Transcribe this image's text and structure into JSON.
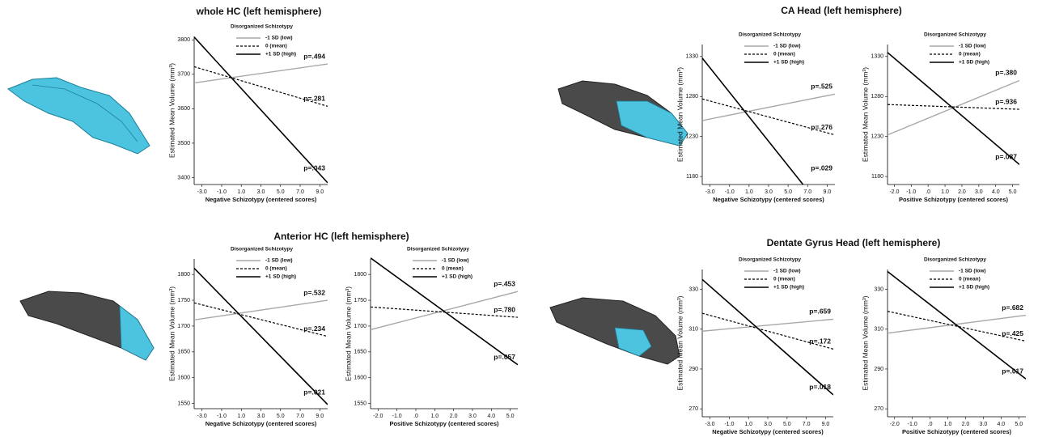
{
  "chart_data": [
    {
      "type": "line",
      "title": "whole HC (left hemisphere)",
      "xlabel": "Negative Schizotypy (centered scores)",
      "ylabel": "Estimated Mean Volume (mm³)",
      "legend_title": "Disorganized  Schizotypy",
      "x": [
        -3.8,
        9.8
      ],
      "xlim": [
        -3.8,
        9.8
      ],
      "ylim": [
        3380,
        3810
      ],
      "xticks": [
        {
          "value": -3,
          "label": "-3.0"
        },
        {
          "value": -1,
          "label": "-1.0"
        },
        {
          "value": 1,
          "label": "1.0"
        },
        {
          "value": 3,
          "label": "3.0"
        },
        {
          "value": 5,
          "label": "5.0"
        },
        {
          "value": 7,
          "label": "7.0"
        },
        {
          "value": 9,
          "label": "9.0"
        }
      ],
      "yticks": [
        3400,
        3500,
        3600,
        3700,
        3800
      ],
      "series": [
        {
          "name": "-1 SD (low)",
          "color": "#a8a8a8",
          "dash": false,
          "values": [
            3675,
            3730
          ],
          "annotation": "p=.494"
        },
        {
          "name": " 0 (mean)",
          "color": "#000000",
          "dash": true,
          "values": [
            3722,
            3607
          ],
          "annotation": "p=.281"
        },
        {
          "name": "+1 SD (high)",
          "color": "#000000",
          "dash": false,
          "values": [
            3808,
            3385
          ],
          "annotation": "p=.043"
        }
      ]
    },
    {
      "type": "line",
      "title": "CA Head (left hemisphere)",
      "xlabel": "Negative Schizotypy (centered scores)",
      "ylabel": "Estimated Mean Volume (mm³)",
      "legend_title": "Disorganized  Schizotypy",
      "x": [
        -3.8,
        9.8
      ],
      "xlim": [
        -3.8,
        9.8
      ],
      "ylim": [
        1170,
        1345
      ],
      "xticks": [
        {
          "value": -3,
          "label": "-3.0"
        },
        {
          "value": -1,
          "label": "-1.0"
        },
        {
          "value": 1,
          "label": "1.0"
        },
        {
          "value": 3,
          "label": "3.0"
        },
        {
          "value": 5,
          "label": "5.0"
        },
        {
          "value": 7,
          "label": "7.0"
        },
        {
          "value": 9,
          "label": "9.0"
        }
      ],
      "yticks": [
        1180,
        1230,
        1280,
        1330
      ],
      "series": [
        {
          "name": "-1 SD (low)",
          "color": "#a8a8a8",
          "dash": false,
          "values": [
            1250,
            1283
          ],
          "annotation": "p=.525"
        },
        {
          "name": " 0 (mean)",
          "color": "#000000",
          "dash": true,
          "values": [
            1277,
            1232
          ],
          "annotation": "p=.276"
        },
        {
          "name": "+1 SD (high)",
          "color": "#000000",
          "dash": false,
          "values": [
            1328,
            1120
          ],
          "annotation": "p=.029"
        }
      ]
    },
    {
      "type": "line",
      "xlabel": "Positive Schizotypy (centered scores)",
      "ylabel": "Estimated Mean Volume (mm³)",
      "legend_title": "Disorganized  Schizotypy",
      "x": [
        -2.4,
        5.4
      ],
      "xlim": [
        -2.4,
        5.4
      ],
      "ylim": [
        1170,
        1345
      ],
      "xticks": [
        {
          "value": -2,
          "label": "-2.0"
        },
        {
          "value": -1,
          "label": "-1.0"
        },
        {
          "value": 0,
          "label": ".0"
        },
        {
          "value": 1,
          "label": "1.0"
        },
        {
          "value": 2,
          "label": "2.0"
        },
        {
          "value": 3,
          "label": "3.0"
        },
        {
          "value": 4,
          "label": "4.0"
        },
        {
          "value": 5,
          "label": "5.0"
        }
      ],
      "yticks": [
        1180,
        1230,
        1280,
        1330
      ],
      "series": [
        {
          "name": "-1 SD (low)",
          "color": "#a8a8a8",
          "dash": false,
          "values": [
            1232,
            1300
          ],
          "annotation": "p=.380"
        },
        {
          "name": " 0 (mean)",
          "color": "#000000",
          "dash": true,
          "values": [
            1270,
            1264
          ],
          "annotation": "p=.936"
        },
        {
          "name": "+1 SD (high)",
          "color": "#000000",
          "dash": false,
          "values": [
            1335,
            1195
          ],
          "annotation": "p=.087"
        }
      ]
    },
    {
      "type": "line",
      "title": "Anterior HC (left hemisphere)",
      "xlabel": "Negative Schizotypy (centered scores)",
      "ylabel": "Estimated Mean Volume (mm³)",
      "legend_title": "Disorganized  Schizotypy",
      "x": [
        -3.8,
        9.8
      ],
      "xlim": [
        -3.8,
        9.8
      ],
      "ylim": [
        1540,
        1830
      ],
      "xticks": [
        {
          "value": -3,
          "label": "-3.0"
        },
        {
          "value": -1,
          "label": "-1.0"
        },
        {
          "value": 1,
          "label": "1.0"
        },
        {
          "value": 3,
          "label": "3.0"
        },
        {
          "value": 5,
          "label": "5.0"
        },
        {
          "value": 7,
          "label": "7.0"
        },
        {
          "value": 9,
          "label": "9.0"
        }
      ],
      "yticks": [
        1550,
        1600,
        1650,
        1700,
        1750,
        1800
      ],
      "series": [
        {
          "name": "-1 SD (low)",
          "color": "#a8a8a8",
          "dash": false,
          "values": [
            1712,
            1750
          ],
          "annotation": "p=.532"
        },
        {
          "name": " 0 (mean)",
          "color": "#000000",
          "dash": true,
          "values": [
            1745,
            1680
          ],
          "annotation": "p=.234"
        },
        {
          "name": "+1 SD (high)",
          "color": "#000000",
          "dash": false,
          "values": [
            1812,
            1548
          ],
          "annotation": "p=.021"
        }
      ]
    },
    {
      "type": "line",
      "xlabel": "Positive Schizotypy (centered scores)",
      "ylabel": "Estimated Mean Volume (mm³)",
      "legend_title": "Disorganized  Schizotypy",
      "x": [
        -2.4,
        5.4
      ],
      "xlim": [
        -2.4,
        5.4
      ],
      "ylim": [
        1540,
        1830
      ],
      "xticks": [
        {
          "value": -2,
          "label": "-2.0"
        },
        {
          "value": -1,
          "label": "-1.0"
        },
        {
          "value": 0,
          "label": ".0"
        },
        {
          "value": 1,
          "label": "1.0"
        },
        {
          "value": 2,
          "label": "2.0"
        },
        {
          "value": 3,
          "label": "3.0"
        },
        {
          "value": 4,
          "label": "4.0"
        },
        {
          "value": 5,
          "label": "5.0"
        }
      ],
      "yticks": [
        1550,
        1600,
        1650,
        1700,
        1750,
        1800
      ],
      "series": [
        {
          "name": "-1 SD (low)",
          "color": "#a8a8a8",
          "dash": false,
          "values": [
            1693,
            1767
          ],
          "annotation": "p=.453"
        },
        {
          "name": " 0 (mean)",
          "color": "#000000",
          "dash": true,
          "values": [
            1737,
            1717
          ],
          "annotation": "p=.780"
        },
        {
          "name": "+1 SD (high)",
          "color": "#000000",
          "dash": false,
          "values": [
            1832,
            1625
          ],
          "annotation": "p=.057"
        }
      ]
    },
    {
      "type": "line",
      "title": "Dentate Gyrus Head (left hemisphere)",
      "xlabel": "Negative Schizotypy (centered scores)",
      "ylabel": "Estimated Mean Volume (mm³)",
      "legend_title": "Disorganized  Schizotypy",
      "x": [
        -3.8,
        9.8
      ],
      "xlim": [
        -3.8,
        9.8
      ],
      "ylim": [
        266,
        340
      ],
      "xticks": [
        {
          "value": -3,
          "label": "-3.0"
        },
        {
          "value": -1,
          "label": "-1.0"
        },
        {
          "value": 1,
          "label": "1.0"
        },
        {
          "value": 3,
          "label": "3.0"
        },
        {
          "value": 5,
          "label": "5.0"
        },
        {
          "value": 7,
          "label": "7.0"
        },
        {
          "value": 9,
          "label": "9.0"
        }
      ],
      "yticks": [
        270,
        290,
        310,
        330
      ],
      "series": [
        {
          "name": "-1 SD (low)",
          "color": "#a8a8a8",
          "dash": false,
          "values": [
            309,
            315
          ],
          "annotation": "p=.659"
        },
        {
          "name": " 0 (mean)",
          "color": "#000000",
          "dash": true,
          "values": [
            318,
            300
          ],
          "annotation": "p=.172"
        },
        {
          "name": "+1 SD (high)",
          "color": "#000000",
          "dash": false,
          "values": [
            335,
            277
          ],
          "annotation": "p=.018"
        }
      ]
    },
    {
      "type": "line",
      "xlabel": "Positive Schizotypy (centered scores)",
      "ylabel": "Estimated Mean Volume (mm³)",
      "legend_title": "Disorganized  Schizotypy",
      "x": [
        -2.4,
        5.4
      ],
      "xlim": [
        -2.4,
        5.4
      ],
      "ylim": [
        266,
        340
      ],
      "xticks": [
        {
          "value": -2,
          "label": "-2.0"
        },
        {
          "value": -1,
          "label": "-1.0"
        },
        {
          "value": 0,
          "label": ".0"
        },
        {
          "value": 1,
          "label": "1.0"
        },
        {
          "value": 2,
          "label": "2.0"
        },
        {
          "value": 3,
          "label": "3.0"
        },
        {
          "value": 4,
          "label": "4.0"
        },
        {
          "value": 5,
          "label": "5.0"
        }
      ],
      "yticks": [
        270,
        290,
        310,
        330
      ],
      "series": [
        {
          "name": "-1 SD (low)",
          "color": "#a8a8a8",
          "dash": false,
          "values": [
            308,
            317
          ],
          "annotation": "p=.682"
        },
        {
          "name": " 0 (mean)",
          "color": "#000000",
          "dash": true,
          "values": [
            319,
            304
          ],
          "annotation": "p=.425"
        },
        {
          "name": "+1 SD (high)",
          "color": "#000000",
          "dash": false,
          "values": [
            339,
            285
          ],
          "annotation": "p=.017"
        }
      ]
    }
  ]
}
